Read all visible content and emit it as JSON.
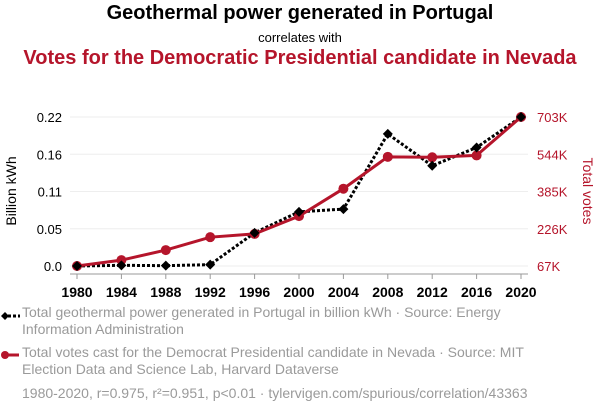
{
  "chart_data": {
    "type": "line",
    "title": "Geothermal power generated in Portugal",
    "subtitle": "correlates with",
    "title2": "Votes for the Democratic Presidential candidate in Nevada",
    "x": [
      1980,
      1984,
      1988,
      1992,
      1996,
      2000,
      2004,
      2008,
      2012,
      2016,
      2020
    ],
    "xticks": [
      "1980",
      "1984",
      "1988",
      "1992",
      "1996",
      "2000",
      "2004",
      "2008",
      "2012",
      "2016",
      "2020"
    ],
    "ylabel_left": "Billion kWh",
    "ylabel_right": "Total votes",
    "yticks_left": [
      "0.0",
      "0.05",
      "0.11",
      "0.16",
      "0.22"
    ],
    "yticks_right": [
      "67K",
      "226K",
      "385K",
      "544K",
      "703K"
    ],
    "ylim_left": [
      0,
      0.22
    ],
    "ylim_right": [
      67000,
      703000
    ],
    "series": [
      {
        "name": "Total geothermal power generated in Portugal in billion kWh",
        "axis": "left",
        "color": "#000000",
        "style": "dotted",
        "marker": "diamond",
        "values": [
          0.0,
          0.001,
          0.0005,
          0.002,
          0.049,
          0.08,
          0.084,
          0.195,
          0.148,
          0.175,
          0.22
        ]
      },
      {
        "name": "Total votes cast for the Democrat Presidential candidate in Nevada",
        "axis": "right",
        "color": "#b5152b",
        "style": "solid",
        "marker": "circle",
        "values": [
          67000,
          92000,
          135000,
          190000,
          204000,
          280000,
          397000,
          533000,
          531000,
          539000,
          703000
        ]
      }
    ],
    "grid": true
  },
  "legend": {
    "series1": "Total geothermal power generated in Portugal in billion kWh · Source: Energy Information Administration",
    "series2": "Total votes cast for the Democrat Presidential candidate in Nevada · Source: MIT Election Data and Science Lab, Harvard Dataverse",
    "footer": "1980-2020, r=0.975, r²=0.951, p<0.01 · tylervigen.com/spurious/correlation/43363"
  }
}
